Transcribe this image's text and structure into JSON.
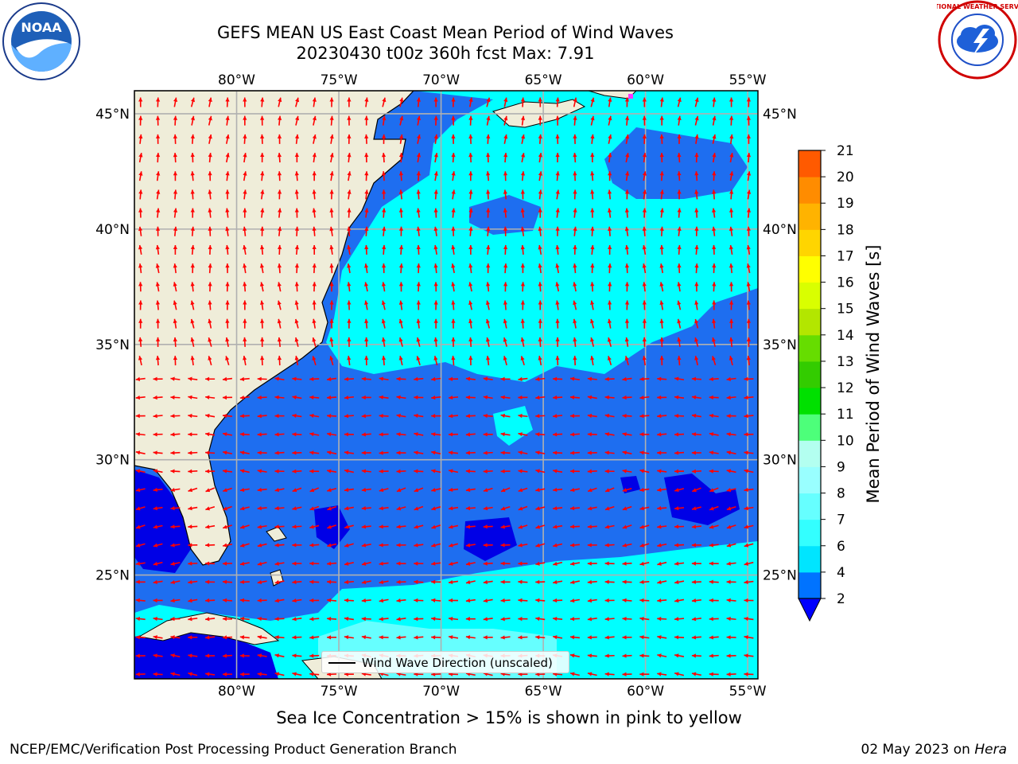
{
  "header": {
    "title_line1": "GEFS MEAN US East Coast Mean Period of Wind Waves",
    "title_line2": "20230430 t00z 360h fcst   Max: 7.91"
  },
  "logos": {
    "left": "noaa-logo",
    "right": "national-weather-service-logo"
  },
  "logo_text": {
    "noaa": "NOAA",
    "nws": "NATIONAL WEATHER SERVICE"
  },
  "map": {
    "lon_ticks": [
      "80°W",
      "75°W",
      "70°W",
      "65°W",
      "60°W",
      "55°W"
    ],
    "lat_ticks": [
      "45°N",
      "40°N",
      "35°N",
      "30°N",
      "25°N"
    ],
    "lon_values": [
      -80,
      -75,
      -70,
      -65,
      -60,
      -55
    ],
    "lat_values": [
      45,
      40,
      35,
      30,
      25
    ],
    "extent": {
      "lon_min": -85,
      "lon_max": -54.5,
      "lat_min": 20.5,
      "lat_max": 46
    },
    "legend_label": "Wind Wave Direction (unscaled)",
    "colors": {
      "land": "#efedd9",
      "ocean_low": "#1e6ef0",
      "ocean_mid": "#00ffff",
      "ocean_min": "#0000e6",
      "arrow": "#ff0000",
      "grid": "#b0b0b0"
    }
  },
  "colorbar": {
    "label": "Mean Period of Wind Waves [s]",
    "ticks": [
      "2",
      "4",
      "6",
      "7",
      "8",
      "9",
      "10",
      "11",
      "12",
      "13",
      "14",
      "15",
      "16",
      "17",
      "18",
      "19",
      "20",
      "21"
    ],
    "colors": [
      "#0073ff",
      "#00e5ff",
      "#33ffff",
      "#66ffff",
      "#99ffff",
      "#b3fff0",
      "#4dff7a",
      "#00e000",
      "#33cc00",
      "#66dd00",
      "#b3e600",
      "#d9ff00",
      "#ffff00",
      "#ffd500",
      "#ffb300",
      "#ff8c00",
      "#ff5a00",
      "#ff2a00",
      "#ff0000"
    ]
  },
  "footer": {
    "note": "Sea Ice Concentration > 15% is shown in pink to yellow",
    "left": "NCEP/EMC/Verification Post Processing Product Generation Branch",
    "right_date": "02 May 2023 on ",
    "right_host": "Hera"
  }
}
